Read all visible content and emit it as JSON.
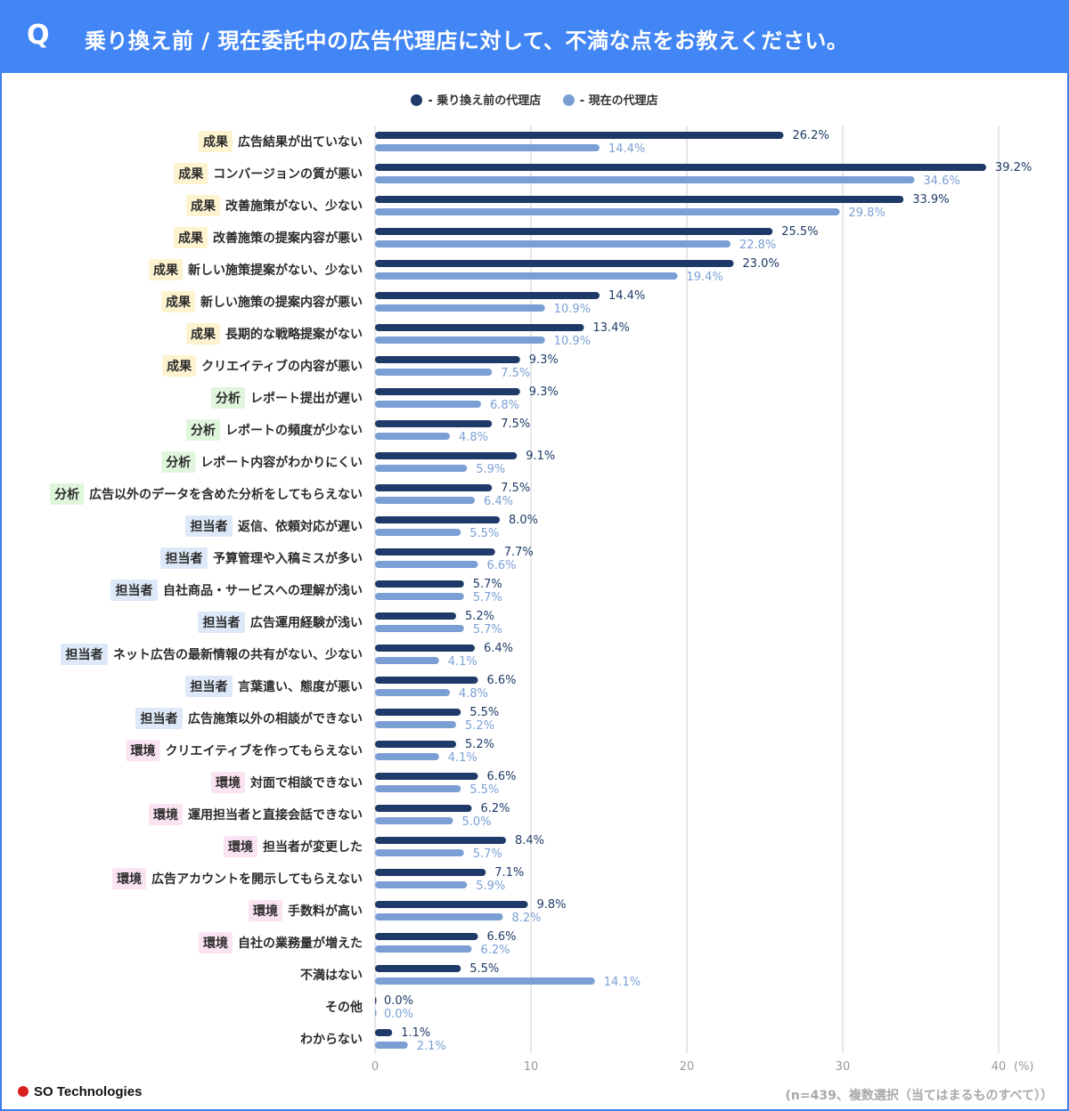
{
  "header": {
    "q_label": "Q",
    "title": "乗り換え前 / 現在委託中の広告代理店に対して、不満な点をお教えください。"
  },
  "colors": {
    "header_bg": "#4285f4",
    "series_before": "#1f3a68",
    "series_now": "#7b9fd4",
    "tag_成果": "#fdf3cf",
    "tag_分析": "#dff5dc",
    "tag_担当者": "#dde9f8",
    "tag_環境": "#fbe4f1"
  },
  "chart_data": {
    "type": "bar",
    "orientation": "horizontal",
    "legend_position": "top-center",
    "grid": true,
    "xlim": [
      0,
      40
    ],
    "x_ticks": [
      "0",
      "10",
      "20",
      "30",
      "40"
    ],
    "x_unit": "(%)",
    "series": [
      {
        "name": "乗り換え前の代理店",
        "legend_label": "- 乗り換え前の代理店",
        "color": "#1f3a68"
      },
      {
        "name": "現在の代理店",
        "legend_label": "- 現在の代理店",
        "color": "#7b9fd4"
      }
    ],
    "categories": [
      {
        "tag": "成果",
        "label": "広告結果が出ていない",
        "before": 26.2,
        "now": 14.4,
        "before_label": "26.2%",
        "now_label": "14.4%"
      },
      {
        "tag": "成果",
        "label": "コンバージョンの質が悪い",
        "before": 39.2,
        "now": 34.6,
        "before_label": "39.2%",
        "now_label": "34.6%"
      },
      {
        "tag": "成果",
        "label": "改善施策がない、少ない",
        "before": 33.9,
        "now": 29.8,
        "before_label": "33.9%",
        "now_label": "29.8%"
      },
      {
        "tag": "成果",
        "label": "改善施策の提案内容が悪い",
        "before": 25.5,
        "now": 22.8,
        "before_label": "25.5%",
        "now_label": "22.8%"
      },
      {
        "tag": "成果",
        "label": "新しい施策提案がない、少ない",
        "before": 23.0,
        "now": 19.4,
        "before_label": "23.0%",
        "now_label": "19.4%"
      },
      {
        "tag": "成果",
        "label": "新しい施策の提案内容が悪い",
        "before": 14.4,
        "now": 10.9,
        "before_label": "14.4%",
        "now_label": "10.9%"
      },
      {
        "tag": "成果",
        "label": "長期的な戦略提案がない",
        "before": 13.4,
        "now": 10.9,
        "before_label": "13.4%",
        "now_label": "10.9%"
      },
      {
        "tag": "成果",
        "label": "クリエイティブの内容が悪い",
        "before": 9.3,
        "now": 7.5,
        "before_label": "9.3%",
        "now_label": "7.5%"
      },
      {
        "tag": "分析",
        "label": "レポート提出が遅い",
        "before": 9.3,
        "now": 6.8,
        "before_label": "9.3%",
        "now_label": "6.8%"
      },
      {
        "tag": "分析",
        "label": "レポートの頻度が少ない",
        "before": 7.5,
        "now": 4.8,
        "before_label": "7.5%",
        "now_label": "4.8%"
      },
      {
        "tag": "分析",
        "label": "レポート内容がわかりにくい",
        "before": 9.1,
        "now": 5.9,
        "before_label": "9.1%",
        "now_label": "5.9%"
      },
      {
        "tag": "分析",
        "label": "広告以外のデータを含めた分析をしてもらえない",
        "before": 7.5,
        "now": 6.4,
        "before_label": "7.5%",
        "now_label": "6.4%"
      },
      {
        "tag": "担当者",
        "label": "返信、依頼対応が遅い",
        "before": 8.0,
        "now": 5.5,
        "before_label": "8.0%",
        "now_label": "5.5%"
      },
      {
        "tag": "担当者",
        "label": "予算管理や入稿ミスが多い",
        "before": 7.7,
        "now": 6.6,
        "before_label": "7.7%",
        "now_label": "6.6%"
      },
      {
        "tag": "担当者",
        "label": "自社商品・サービスへの理解が浅い",
        "before": 5.7,
        "now": 5.7,
        "before_label": "5.7%",
        "now_label": "5.7%"
      },
      {
        "tag": "担当者",
        "label": "広告運用経験が浅い",
        "before": 5.2,
        "now": 5.7,
        "before_label": "5.2%",
        "now_label": "5.7%"
      },
      {
        "tag": "担当者",
        "label": "ネット広告の最新情報の共有がない、少ない",
        "before": 6.4,
        "now": 4.1,
        "before_label": "6.4%",
        "now_label": "4.1%"
      },
      {
        "tag": "担当者",
        "label": "言葉遣い、態度が悪い",
        "before": 6.6,
        "now": 4.8,
        "before_label": "6.6%",
        "now_label": "4.8%"
      },
      {
        "tag": "担当者",
        "label": "広告施策以外の相談ができない",
        "before": 5.5,
        "now": 5.2,
        "before_label": "5.5%",
        "now_label": "5.2%"
      },
      {
        "tag": "環境",
        "label": "クリエイティブを作ってもらえない",
        "before": 5.2,
        "now": 4.1,
        "before_label": "5.2%",
        "now_label": "4.1%"
      },
      {
        "tag": "環境",
        "label": "対面で相談できない",
        "before": 6.6,
        "now": 5.5,
        "before_label": "6.6%",
        "now_label": "5.5%"
      },
      {
        "tag": "環境",
        "label": "運用担当者と直接会話できない",
        "before": 6.2,
        "now": 5.0,
        "before_label": "6.2%",
        "now_label": "5.0%"
      },
      {
        "tag": "環境",
        "label": "担当者が変更した",
        "before": 8.4,
        "now": 5.7,
        "before_label": "8.4%",
        "now_label": "5.7%"
      },
      {
        "tag": "環境",
        "label": "広告アカウントを開示してもらえない",
        "before": 7.1,
        "now": 5.9,
        "before_label": "7.1%",
        "now_label": "5.9%"
      },
      {
        "tag": "環境",
        "label": "手数料が高い",
        "before": 9.8,
        "now": 8.2,
        "before_label": "9.8%",
        "now_label": "8.2%"
      },
      {
        "tag": "環境",
        "label": "自社の業務量が増えた",
        "before": 6.6,
        "now": 6.2,
        "before_label": "6.6%",
        "now_label": "6.2%"
      },
      {
        "tag": "",
        "label": "不満はない",
        "before": 5.5,
        "now": 14.1,
        "before_label": "5.5%",
        "now_label": "14.1%"
      },
      {
        "tag": "",
        "label": "その他",
        "before": 0.0,
        "now": 0.0,
        "before_label": "0.0%",
        "now_label": "0.0%"
      },
      {
        "tag": "",
        "label": "わからない",
        "before": 1.1,
        "now": 2.1,
        "before_label": "1.1%",
        "now_label": "2.1%"
      }
    ]
  },
  "footer": {
    "logo_text": "SO Technologies",
    "note": "(n=439、複数選択（当てはまるものすべて））"
  }
}
